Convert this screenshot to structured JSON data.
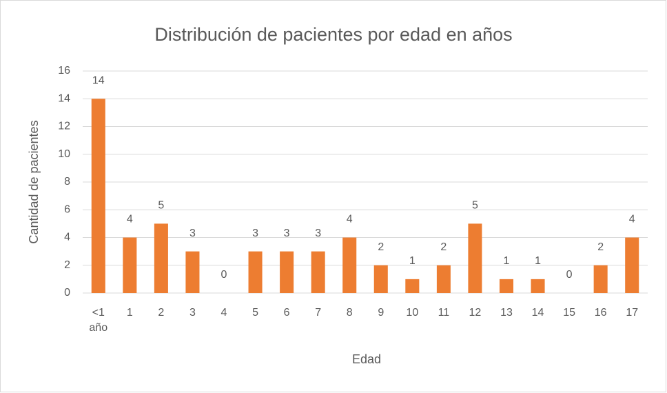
{
  "chart_data": {
    "type": "bar",
    "title": "Distribución de pacientes por edad en años",
    "x_label": "Edad",
    "y_label": "Cantidad de pacientes",
    "categories": [
      "<1 año",
      "1",
      "2",
      "3",
      "4",
      "5",
      "6",
      "7",
      "8",
      "9",
      "10",
      "11",
      "12",
      "13",
      "14",
      "15",
      "16",
      "17"
    ],
    "values": [
      14,
      4,
      5,
      3,
      0,
      3,
      3,
      3,
      4,
      2,
      1,
      2,
      5,
      1,
      1,
      0,
      2,
      4
    ],
    "color": "#ed7d31",
    "ylim": [
      0,
      16
    ],
    "yticks": [
      0,
      2,
      4,
      6,
      8,
      10,
      12,
      14,
      16
    ],
    "grid": true
  }
}
